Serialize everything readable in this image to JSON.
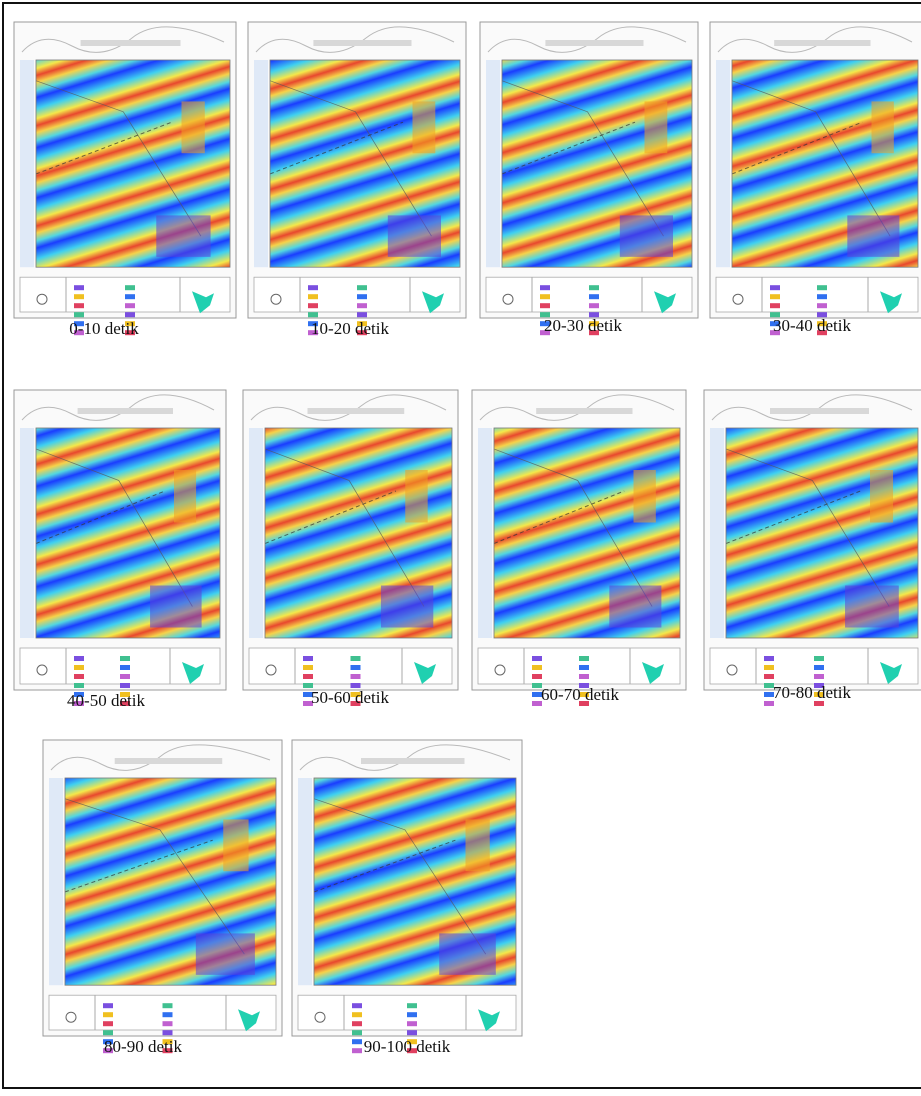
{
  "panels": [
    {
      "caption": "0-10 detik"
    },
    {
      "caption": "10-20 detik"
    },
    {
      "caption": "20-30 detik"
    },
    {
      "caption": "30-40 detik"
    },
    {
      "caption": "40-50 detik"
    },
    {
      "caption": "50-60 detik"
    },
    {
      "caption": "60-70 detik"
    },
    {
      "caption": "70-80 detik"
    },
    {
      "caption": "80-90 detik"
    },
    {
      "caption": "90-100 detik"
    }
  ]
}
